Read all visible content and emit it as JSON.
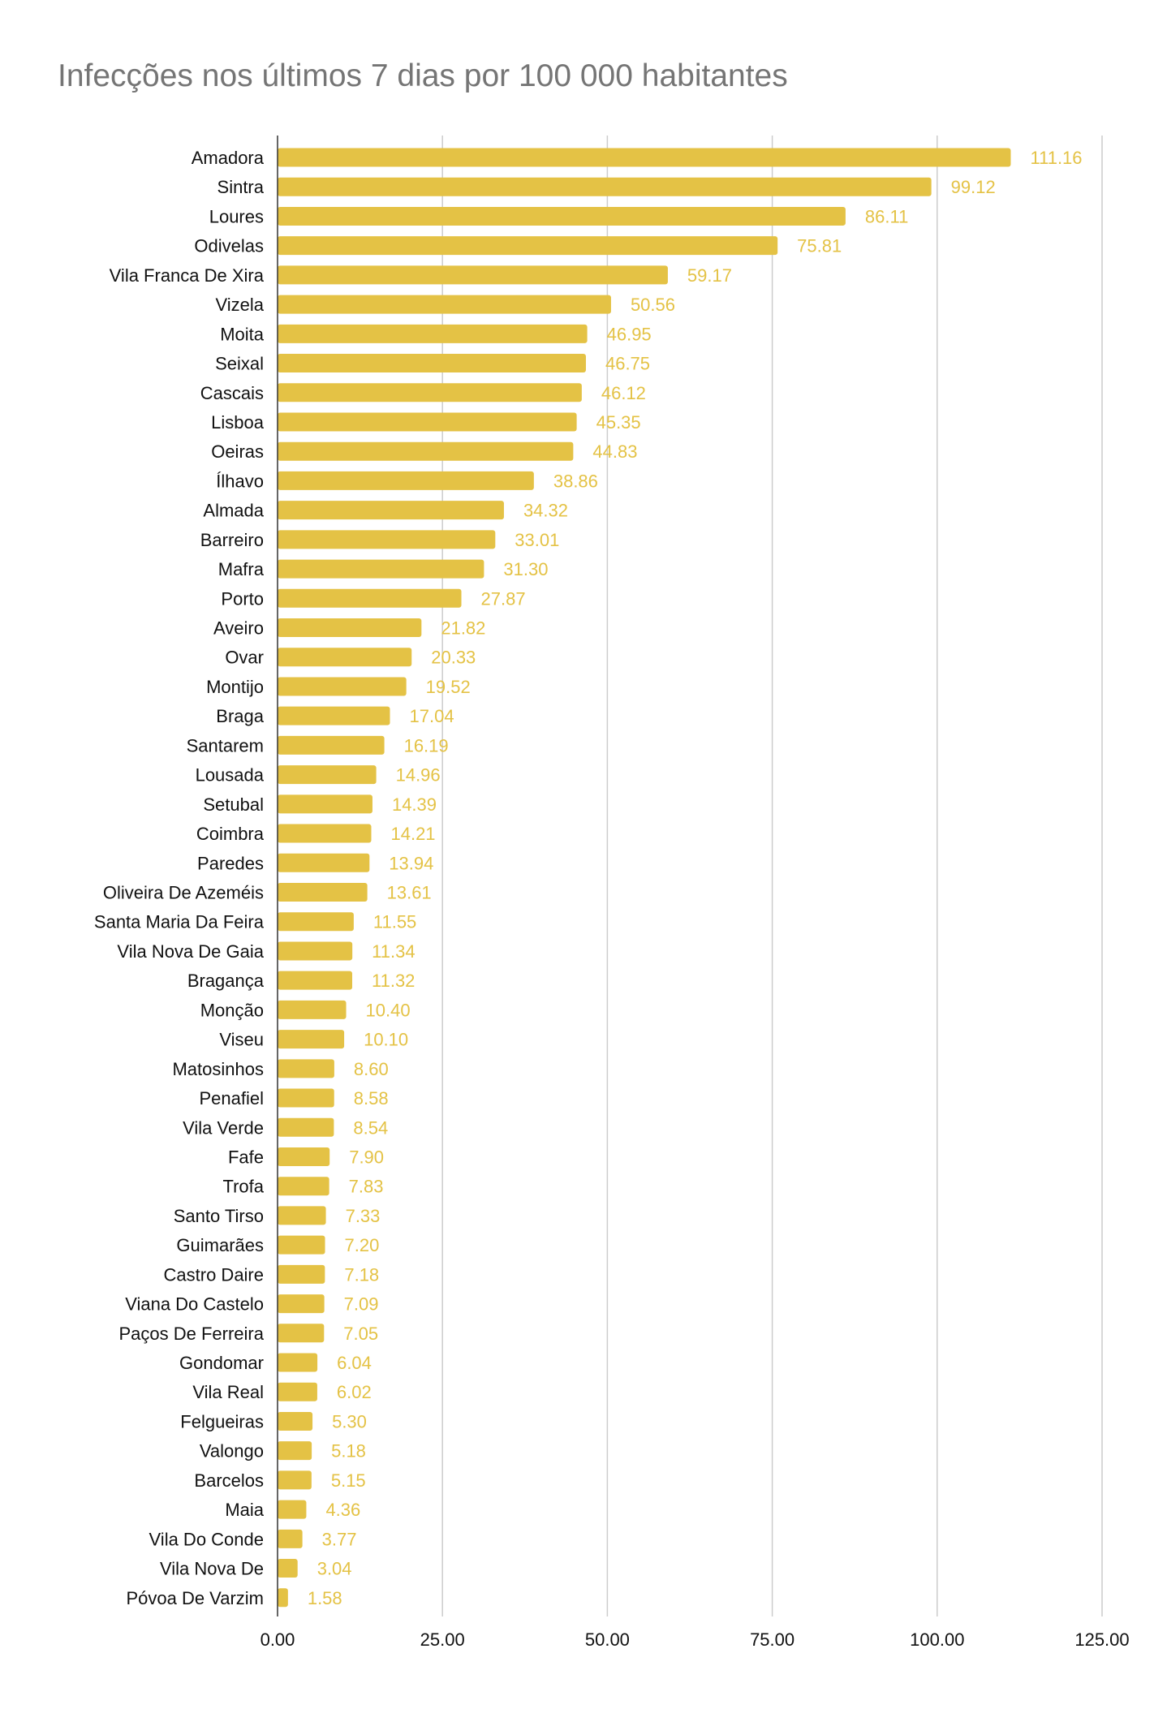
{
  "chart_data": {
    "type": "bar",
    "orientation": "horizontal",
    "title": "Infecções nos últimos 7 dias por 100 000 habitantes",
    "xlabel": "",
    "ylabel": "",
    "xlim": [
      0,
      125
    ],
    "ticks": [
      "0.00",
      "25.00",
      "50.00",
      "75.00",
      "100.00",
      "125.00"
    ],
    "tick_values": [
      0,
      25,
      50,
      75,
      100,
      125
    ],
    "grid": true,
    "bar_color": "#e4c245",
    "label_color": "#e4c245",
    "categories": [
      "Amadora",
      "Sintra",
      "Loures",
      "Odivelas",
      "Vila Franca De Xira",
      "Vizela",
      "Moita",
      "Seixal",
      "Cascais",
      "Lisboa",
      "Oeiras",
      "Ílhavo",
      "Almada",
      "Barreiro",
      "Mafra",
      "Porto",
      "Aveiro",
      "Ovar",
      "Montijo",
      "Braga",
      "Santarem",
      "Lousada",
      "Setubal",
      "Coimbra",
      "Paredes",
      "Oliveira De Azeméis",
      "Santa Maria Da Feira",
      "Vila Nova De Gaia",
      "Bragança",
      "Monção",
      "Viseu",
      "Matosinhos",
      "Penafiel",
      "Vila Verde",
      "Fafe",
      "Trofa",
      "Santo Tirso",
      "Guimarães",
      "Castro Daire",
      "Viana Do Castelo",
      "Paços De Ferreira",
      "Gondomar",
      "Vila Real",
      "Felgueiras",
      "Valongo",
      "Barcelos",
      "Maia",
      "Vila Do Conde",
      "Vila Nova De",
      "Póvoa De Varzim"
    ],
    "values": [
      111.16,
      99.12,
      86.11,
      75.81,
      59.17,
      50.56,
      46.95,
      46.75,
      46.12,
      45.35,
      44.83,
      38.86,
      34.32,
      33.01,
      31.3,
      27.87,
      21.82,
      20.33,
      19.52,
      17.04,
      16.19,
      14.96,
      14.39,
      14.21,
      13.94,
      13.61,
      11.55,
      11.34,
      11.32,
      10.4,
      10.1,
      8.6,
      8.58,
      8.54,
      7.9,
      7.83,
      7.33,
      7.2,
      7.18,
      7.09,
      7.05,
      6.04,
      6.02,
      5.3,
      5.18,
      5.15,
      4.36,
      3.77,
      3.04,
      1.58
    ]
  }
}
